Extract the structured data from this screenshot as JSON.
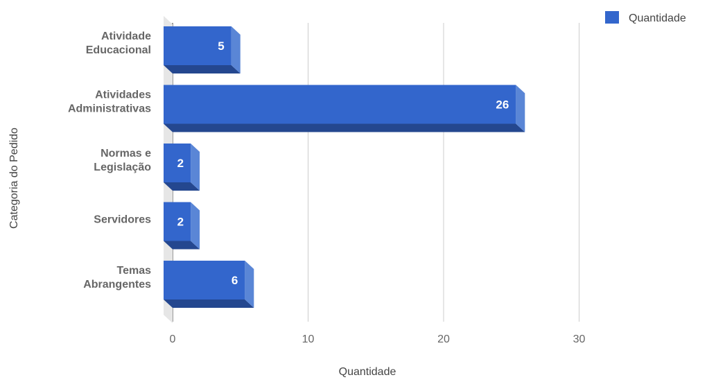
{
  "chart_data": {
    "type": "bar",
    "orientation": "horizontal",
    "style": "3d",
    "categories": [
      [
        "Atividade",
        "Educacional"
      ],
      [
        "Atividades",
        "Administrativas"
      ],
      [
        "Normas e",
        "Legislação"
      ],
      [
        "Servidores"
      ],
      [
        "Temas",
        "Abrangentes"
      ]
    ],
    "series": [
      {
        "name": "Quantidade",
        "values": [
          5,
          26,
          2,
          2,
          6
        ],
        "color": "#3366cc"
      }
    ],
    "data_labels": [
      "5",
      "26",
      "2",
      "2",
      "6"
    ],
    "xlabel": "Quantidade",
    "ylabel": "Categoria do Pedido",
    "xlim": [
      0,
      35
    ],
    "xticks": [
      0,
      10,
      20,
      30
    ],
    "xtick_labels": [
      "0",
      "10",
      "20",
      "30"
    ],
    "grid": true,
    "legend": {
      "position": "top-right",
      "entries": [
        "Quantidade"
      ]
    }
  }
}
